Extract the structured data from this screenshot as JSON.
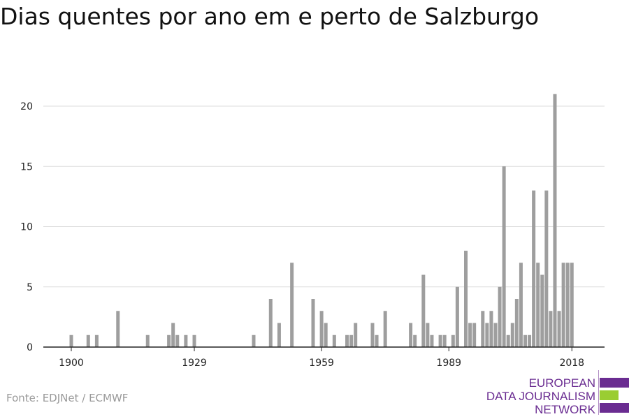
{
  "title": "Dias quentes por ano em e perto de Salzburgo",
  "source": "Fonte: EDJNet / ECMWF",
  "logo": {
    "lines": [
      "EUROPEAN",
      "DATA JOURNALISM",
      "NETWORK"
    ],
    "colors": {
      "purple": "#6a2c91",
      "green": "#9acd32"
    }
  },
  "colors": {
    "bar": "#9e9e9e",
    "grid": "#dddddd",
    "axis": "#222222",
    "text": "#222222"
  },
  "chart_data": {
    "type": "bar",
    "title": "Dias quentes por ano em e perto de Salzburgo",
    "xlabel": "",
    "ylabel": "",
    "x_ticks": [
      1900,
      1929,
      1959,
      1989,
      2018
    ],
    "y_ticks": [
      0,
      5,
      10,
      15,
      20
    ],
    "xlim": [
      1900,
      2018
    ],
    "ylim": [
      0,
      21
    ],
    "grid": true,
    "x": [
      1900,
      1904,
      1906,
      1911,
      1918,
      1923,
      1924,
      1925,
      1927,
      1929,
      1943,
      1947,
      1949,
      1952,
      1957,
      1959,
      1960,
      1962,
      1965,
      1966,
      1967,
      1971,
      1972,
      1974,
      1980,
      1981,
      1983,
      1984,
      1985,
      1987,
      1988,
      1990,
      1991,
      1993,
      1994,
      1995,
      1997,
      1998,
      1999,
      2000,
      2001,
      2002,
      2003,
      2004,
      2005,
      2006,
      2007,
      2008,
      2009,
      2010,
      2011,
      2012,
      2013,
      2014,
      2015,
      2016,
      2017,
      2018
    ],
    "values": [
      1,
      1,
      1,
      3,
      1,
      1,
      2,
      1,
      1,
      1,
      1,
      4,
      2,
      7,
      4,
      3,
      2,
      1,
      1,
      1,
      2,
      2,
      1,
      3,
      2,
      1,
      6,
      2,
      1,
      1,
      1,
      1,
      5,
      8,
      2,
      2,
      3,
      2,
      3,
      2,
      5,
      15,
      1,
      2,
      4,
      7,
      1,
      1,
      13,
      7,
      6,
      13,
      3,
      21,
      3,
      7,
      7,
      7
    ]
  }
}
